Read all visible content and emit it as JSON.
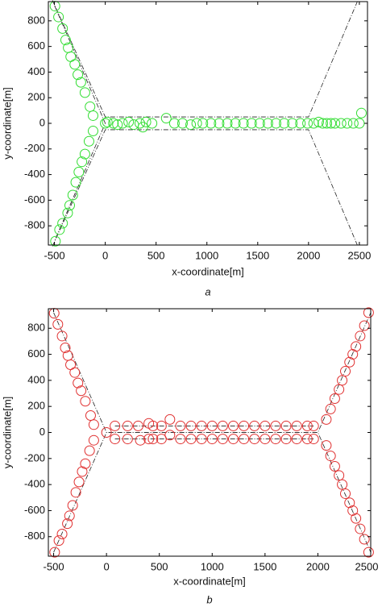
{
  "chart_data": [
    {
      "type": "scatter",
      "caption": "a",
      "x_label": "x-coordinate[m]",
      "y_label": "y-coordinate[m]",
      "xlim": [
        -560,
        2580
      ],
      "ylim": [
        -950,
        950
      ],
      "xticks": [
        -500,
        0,
        500,
        1000,
        1500,
        2000,
        2500
      ],
      "yticks": [
        -800,
        -600,
        -400,
        -200,
        0,
        200,
        400,
        600,
        800
      ],
      "series": [
        {
          "color": "#33dd33",
          "x": [
            -495,
            -460,
            -420,
            -390,
            -365,
            -340,
            -300,
            -270,
            -240,
            -200,
            -150,
            -120,
            -120,
            -160,
            -200,
            -230,
            -260,
            -290,
            -320,
            -350,
            -370,
            -420,
            -450,
            -490,
            0,
            20,
            80,
            120,
            170,
            230,
            280,
            340,
            370,
            400,
            460,
            600,
            680,
            760,
            840,
            900,
            960,
            1040,
            1120,
            1200,
            1280,
            1360,
            1440,
            1520,
            1600,
            1680,
            1760,
            1840,
            1920,
            1990,
            2050,
            2100,
            2140,
            2180,
            2220,
            2260,
            2320,
            2380,
            2440,
            2500,
            2520
          ],
          "values": [
            915,
            830,
            740,
            650,
            590,
            520,
            460,
            380,
            320,
            240,
            130,
            60,
            -60,
            -140,
            -240,
            -300,
            -380,
            -460,
            -560,
            -640,
            -700,
            -780,
            -830,
            -920,
            0,
            10,
            0,
            -10,
            0,
            10,
            -10,
            0,
            -30,
            10,
            0,
            40,
            0,
            0,
            -10,
            0,
            0,
            0,
            0,
            0,
            0,
            0,
            0,
            0,
            0,
            0,
            0,
            0,
            0,
            0,
            0,
            10,
            0,
            0,
            0,
            0,
            0,
            0,
            0,
            0,
            80
          ]
        }
      ],
      "lines": [
        {
          "x": [
            -520,
            0,
            2000,
            2480
          ],
          "values": [
            960,
            50,
            50,
            950
          ]
        },
        {
          "x": [
            -520,
            0,
            2000,
            2480
          ],
          "values": [
            -960,
            -50,
            -50,
            -950
          ]
        },
        {
          "x": [
            -500,
            0,
            -500
          ],
          "values": [
            920,
            0,
            -920
          ]
        }
      ]
    },
    {
      "type": "scatter",
      "caption": "b",
      "x_label": "x-coordinate[m]",
      "y_label": "y-coordinate[m]",
      "xlim": [
        -550,
        2500
      ],
      "ylim": [
        -950,
        950
      ],
      "xticks": [
        -500,
        0,
        500,
        1000,
        1500,
        2000,
        2500
      ],
      "yticks": [
        -800,
        -600,
        -400,
        -200,
        0,
        200,
        400,
        600,
        800
      ],
      "series": [
        {
          "color": "#e03030",
          "x": [
            -495,
            -460,
            -420,
            -390,
            -365,
            -340,
            -300,
            -270,
            -240,
            -200,
            -150,
            -120,
            -120,
            -160,
            -200,
            -230,
            -260,
            -290,
            -320,
            -350,
            -370,
            -420,
            -450,
            -490,
            0,
            2080,
            2120,
            2160,
            2200,
            2230,
            2260,
            2300,
            2330,
            2360,
            2400,
            2440,
            2480,
            2080,
            2120,
            2160,
            2200,
            2230,
            2260,
            2300,
            2330,
            2360,
            2400,
            2440,
            2480,
            80,
            200,
            300,
            400,
            440,
            520,
            600,
            700,
            800,
            900,
            1000,
            1100,
            1200,
            1300,
            1400,
            1500,
            1600,
            1700,
            1800,
            1900,
            1960,
            80,
            200,
            320,
            400,
            440,
            520,
            600,
            700,
            800,
            900,
            1000,
            1100,
            1200,
            1300,
            1400,
            1500,
            1600,
            1700,
            1800,
            1900,
            1960
          ],
          "values": [
            915,
            830,
            740,
            650,
            590,
            520,
            460,
            380,
            320,
            240,
            130,
            60,
            -60,
            -140,
            -240,
            -300,
            -380,
            -460,
            -560,
            -640,
            -700,
            -780,
            -830,
            -920,
            0,
            100,
            180,
            260,
            330,
            400,
            470,
            540,
            600,
            660,
            740,
            820,
            920,
            -100,
            -180,
            -260,
            -330,
            -400,
            -470,
            -540,
            -600,
            -660,
            -740,
            -820,
            -920,
            50,
            50,
            50,
            70,
            50,
            50,
            100,
            50,
            50,
            50,
            50,
            50,
            50,
            50,
            50,
            50,
            50,
            50,
            50,
            50,
            50,
            -50,
            -50,
            -60,
            -50,
            -50,
            -50,
            -20,
            -50,
            -50,
            -50,
            -50,
            -50,
            -50,
            -50,
            -50,
            -50,
            -50,
            -50,
            -50,
            -50,
            -50
          ]
        }
      ],
      "lines": [
        {
          "x": [
            -500,
            0,
            2000,
            2500
          ],
          "values": [
            920,
            0,
            0,
            920
          ]
        },
        {
          "x": [
            -500,
            0,
            2000,
            2500
          ],
          "values": [
            -920,
            0,
            0,
            -920
          ]
        },
        {
          "x": [
            80,
            1960
          ],
          "values": [
            50,
            50
          ]
        },
        {
          "x": [
            80,
            1960
          ],
          "values": [
            -50,
            -50
          ]
        }
      ]
    }
  ]
}
